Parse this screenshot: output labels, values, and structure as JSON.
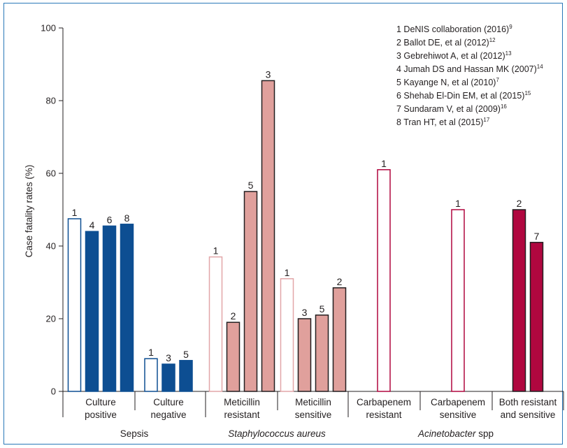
{
  "colors": {
    "sepsis": "#0d4e92",
    "staph_fill": "#e0a09c",
    "staph_outline": "#e2a6a8",
    "acineto": "#b0073f",
    "axis": "#231f20",
    "frame": "#2a78b8"
  },
  "legend": [
    {
      "text": "1 DeNIS collaboration (2016)",
      "ref": "9"
    },
    {
      "text": "2 Ballot DE, et al (2012)",
      "ref": "12"
    },
    {
      "text": "3 Gebrehiwot A, et al (2012)",
      "ref": "13"
    },
    {
      "text": "4 Jumah DS and Hassan MK (2007)",
      "ref": "14"
    },
    {
      "text": "5 Kayange N, et al (2010)",
      "ref": "7"
    },
    {
      "text": "6 Shehab El-Din EM, et al (2015)",
      "ref": "15"
    },
    {
      "text": "7 Sundaram V, et al (2009)",
      "ref": "16"
    },
    {
      "text": "8 Tran HT, et al (2015)",
      "ref": "17"
    }
  ],
  "chart_data": {
    "type": "bar",
    "ylabel": "Case fatality rates (%)",
    "ylim": [
      0,
      100
    ],
    "yticks": [
      0,
      20,
      40,
      60,
      80,
      100
    ],
    "grid": false,
    "legend_position": "top-right",
    "groups": [
      {
        "line1": "Culture",
        "line2": "positive",
        "family": "sepsis",
        "bars": [
          {
            "study": "1",
            "value": 47.5,
            "style": "outline"
          },
          {
            "study": "4",
            "value": 44,
            "style": "filled"
          },
          {
            "study": "6",
            "value": 45.5,
            "style": "filled"
          },
          {
            "study": "8",
            "value": 46,
            "style": "filled"
          }
        ]
      },
      {
        "line1": "Culture",
        "line2": "negative",
        "family": "sepsis",
        "bars": [
          {
            "study": "1",
            "value": 9,
            "style": "outline"
          },
          {
            "study": "3",
            "value": 7.5,
            "style": "filled"
          },
          {
            "study": "5",
            "value": 8.5,
            "style": "filled"
          }
        ]
      },
      {
        "line1": "Meticillin",
        "line2": "resistant",
        "family": "staph",
        "bars": [
          {
            "study": "1",
            "value": 37,
            "style": "outline"
          },
          {
            "study": "2",
            "value": 19,
            "style": "filled"
          },
          {
            "study": "5",
            "value": 55,
            "style": "filled"
          },
          {
            "study": "3",
            "value": 85.5,
            "style": "filled"
          }
        ]
      },
      {
        "line1": "Meticillin",
        "line2": "sensitive",
        "family": "staph",
        "bars": [
          {
            "study": "1",
            "value": 31,
            "style": "outline"
          },
          {
            "study": "3",
            "value": 20,
            "style": "filled"
          },
          {
            "study": "5",
            "value": 21,
            "style": "filled"
          },
          {
            "study": "2",
            "value": 28.5,
            "style": "filled"
          }
        ]
      },
      {
        "line1": "Carbapenem",
        "line2": "resistant",
        "family": "acineto",
        "bars": [
          {
            "study": "1",
            "value": 61,
            "style": "outline"
          }
        ]
      },
      {
        "line1": "Carbapenem",
        "line2": "sensitive",
        "family": "acineto",
        "bars": [
          {
            "study": "1",
            "value": 50,
            "style": "outline"
          }
        ]
      },
      {
        "line1": "Both resistant",
        "line2": "and sensitive",
        "family": "acineto",
        "bars": [
          {
            "study": "2",
            "value": 50,
            "style": "filled"
          },
          {
            "study": "7",
            "value": 41,
            "style": "filled"
          }
        ]
      }
    ],
    "categories": [
      {
        "prefix": "",
        "italic": "",
        "suffix": "Sepsis",
        "groups": [
          0,
          1
        ]
      },
      {
        "prefix": "",
        "italic": "Staphylococcus aureus",
        "suffix": "",
        "groups": [
          2,
          3
        ]
      },
      {
        "prefix": "",
        "italic": "Acinetobacter",
        "suffix": " spp",
        "groups": [
          4,
          5,
          6
        ]
      }
    ]
  }
}
